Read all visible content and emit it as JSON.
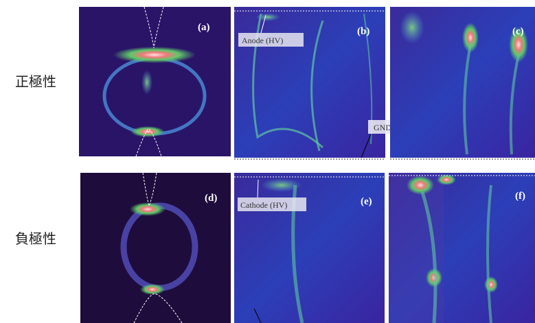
{
  "rows": [
    {
      "label": "正極性"
    },
    {
      "label": "負極性"
    }
  ],
  "panels": [
    {
      "label": "(a)"
    },
    {
      "label": "(b)"
    },
    {
      "label": "(c)"
    },
    {
      "label": "(d)"
    },
    {
      "label": "(e)"
    },
    {
      "label": "(f)"
    }
  ],
  "annotations": {
    "anode": "Anode (HV)",
    "cathode": "Cathode (HV)",
    "gnd": "GND"
  }
}
